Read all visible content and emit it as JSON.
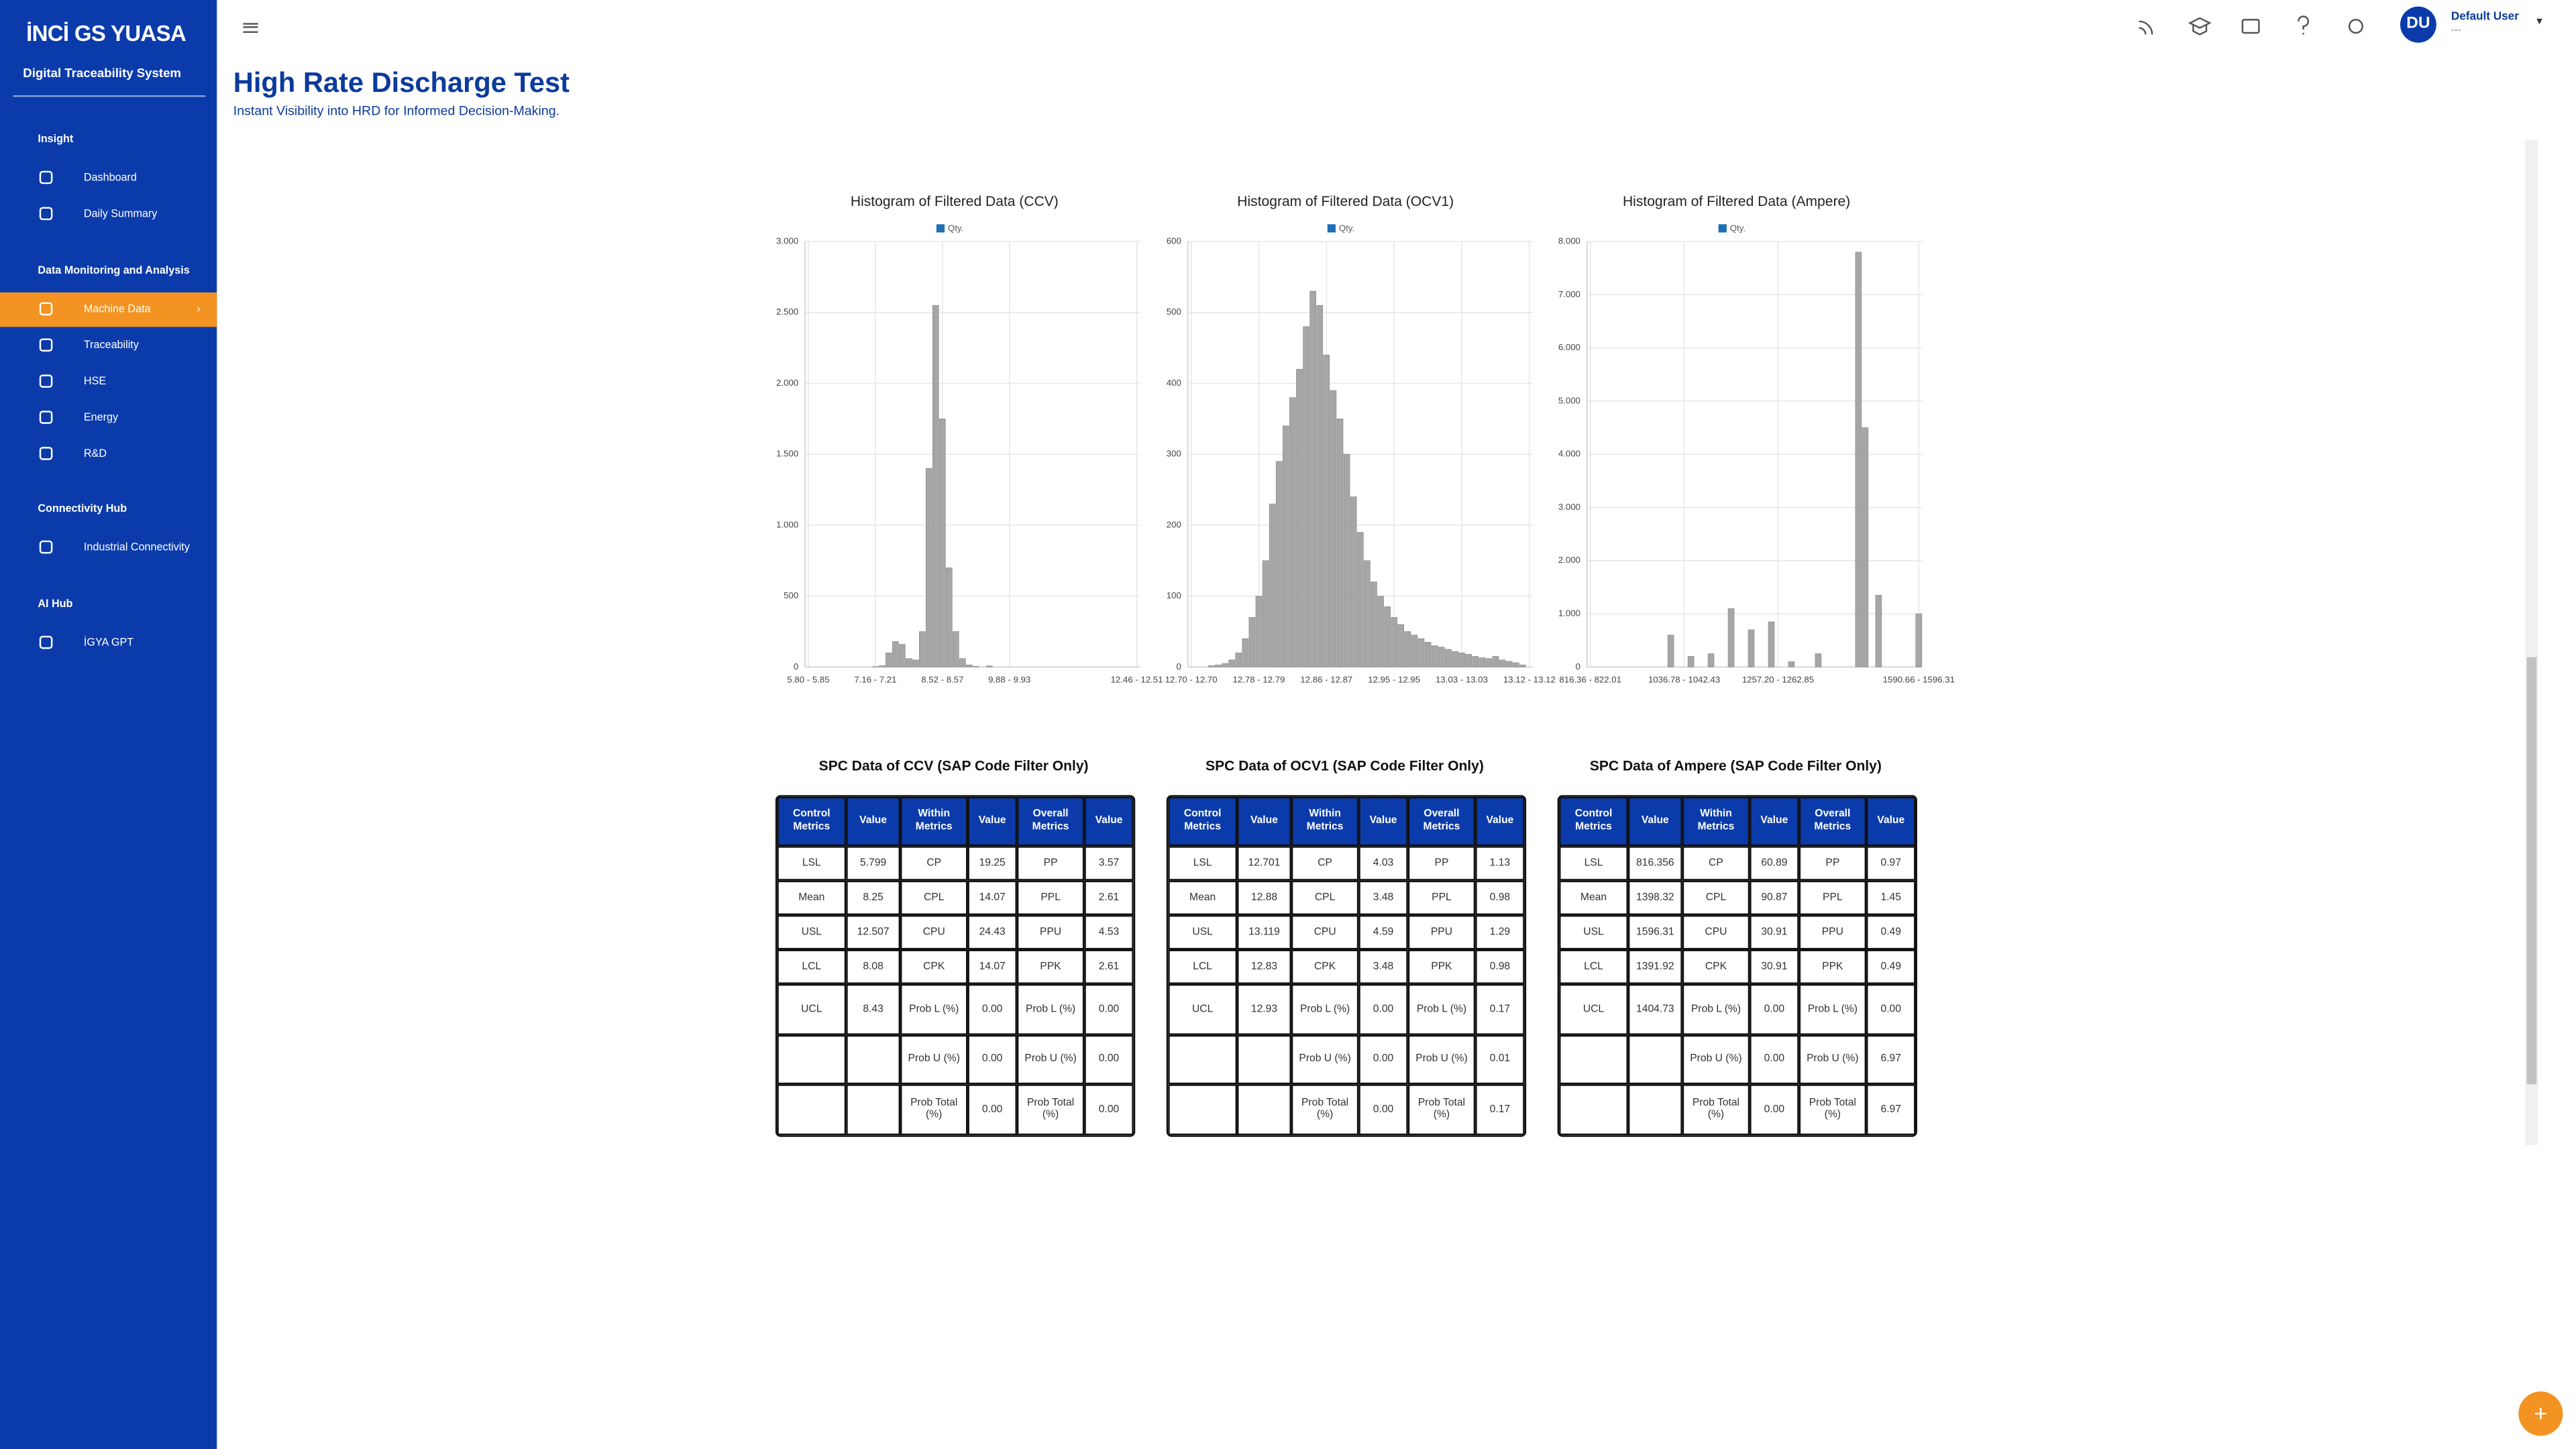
{
  "sidebar": {
    "logo": "İNCİ GS YUASA",
    "app_name": "Digital Traceability System",
    "sections": [
      {
        "title": "Insight",
        "items": [
          "Dashboard",
          "Daily Summary"
        ]
      },
      {
        "title": "Data Monitoring and Analysis",
        "items": [
          "Machine Data",
          "Traceability",
          "HSE",
          "Energy",
          "R&D"
        ]
      },
      {
        "title": "Connectivity Hub",
        "items": [
          "Industrial Connectivity"
        ]
      },
      {
        "title": "AI Hub",
        "items": [
          "İGYA GPT"
        ]
      }
    ],
    "active_section": 1,
    "active_item": 0
  },
  "header": {
    "title": "High Rate Discharge Test",
    "subtitle": "Instant Visibility into HRD for Informed Decision-Making.",
    "user_initials": "DU",
    "user_name": "Default User",
    "user_role": "---"
  },
  "chart_data": [
    {
      "type": "bar",
      "title": "Histogram of Filtered Data (CCV)",
      "grid": true,
      "categories": [
        "5.80 - 5.85",
        null,
        null,
        null,
        null,
        null,
        null,
        null,
        null,
        null,
        "7.16 - 7.21",
        null,
        null,
        null,
        null,
        null,
        null,
        null,
        null,
        null,
        "8.52 - 8.57",
        null,
        null,
        null,
        null,
        null,
        null,
        null,
        null,
        null,
        "9.88 - 9.93",
        null,
        null,
        null,
        null,
        null,
        null,
        null,
        null,
        null,
        null,
        null,
        null,
        null,
        null,
        null,
        null,
        null,
        null,
        "12.46 - 12.51"
      ],
      "series": [
        {
          "name": "Qty.",
          "color": "#a6a6a6",
          "legend_color": "#1f6fb5",
          "values": [
            0,
            0,
            0,
            0,
            0,
            0,
            0,
            0,
            0,
            0,
            3,
            10,
            100,
            180,
            160,
            60,
            50,
            250,
            1400,
            2550,
            1750,
            700,
            250,
            60,
            15,
            5,
            0,
            8,
            0,
            0,
            0,
            0,
            0,
            0,
            0,
            0,
            0,
            0,
            0,
            0,
            0,
            0,
            0,
            0,
            0,
            0,
            0,
            0,
            0,
            0
          ]
        }
      ],
      "ylim": [
        0,
        3000
      ],
      "yticks": [
        0,
        500,
        {
          "value": 1000,
          "label": "1.000"
        },
        {
          "value": 1500,
          "label": "1.500"
        },
        {
          "value": 2000,
          "label": "2.000"
        },
        {
          "value": 2500,
          "label": "2.500"
        },
        {
          "value": 3000,
          "label": "3.000"
        }
      ]
    },
    {
      "type": "bar",
      "title": "Histogram of Filtered Data (OCV1)",
      "grid": true,
      "categories": [
        "12.70 - 12.70",
        null,
        null,
        null,
        null,
        null,
        null,
        null,
        null,
        null,
        "12.78 - 12.79",
        null,
        null,
        null,
        null,
        null,
        null,
        null,
        null,
        null,
        "12.86 - 12.87",
        null,
        null,
        null,
        null,
        null,
        null,
        null,
        null,
        null,
        "12.95 - 12.95",
        null,
        null,
        null,
        null,
        null,
        null,
        null,
        null,
        null,
        "13.03 - 13.03",
        null,
        null,
        null,
        null,
        null,
        null,
        null,
        null,
        null,
        "13.12 - 13.12"
      ],
      "series": [
        {
          "name": "Qty.",
          "color": "#a6a6a6",
          "legend_color": "#1f6fb5",
          "values": [
            0,
            0,
            0,
            2,
            3,
            5,
            10,
            20,
            40,
            70,
            100,
            150,
            230,
            290,
            340,
            380,
            420,
            480,
            530,
            510,
            440,
            390,
            350,
            300,
            240,
            190,
            150,
            120,
            100,
            85,
            70,
            60,
            50,
            45,
            40,
            35,
            30,
            28,
            25,
            22,
            20,
            18,
            15,
            13,
            12,
            15,
            10,
            8,
            6,
            3,
            0
          ]
        }
      ],
      "ylim": [
        0,
        600
      ],
      "yticks": [
        0,
        100,
        200,
        300,
        400,
        500,
        600
      ]
    },
    {
      "type": "bar",
      "title": "Histogram of Filtered Data (Ampere)",
      "grid": true,
      "categories": [
        "816.36 - 822.01",
        null,
        null,
        null,
        null,
        null,
        null,
        null,
        null,
        null,
        null,
        null,
        null,
        null,
        "1036.78 - 1042.43",
        null,
        null,
        null,
        null,
        null,
        null,
        null,
        null,
        null,
        null,
        null,
        null,
        null,
        "1257.20 - 1262.85",
        null,
        null,
        null,
        null,
        null,
        null,
        null,
        null,
        null,
        null,
        null,
        null,
        null,
        null,
        null,
        null,
        null,
        null,
        null,
        null,
        "1590.66 - 1596.31"
      ],
      "series": [
        {
          "name": "Qty.",
          "color": "#a6a6a6",
          "legend_color": "#1f6fb5",
          "values": [
            0,
            0,
            0,
            0,
            0,
            0,
            0,
            0,
            0,
            0,
            0,
            0,
            600,
            0,
            0,
            200,
            0,
            0,
            250,
            0,
            0,
            1100,
            0,
            0,
            700,
            0,
            0,
            850,
            0,
            0,
            100,
            0,
            0,
            0,
            250,
            0,
            0,
            0,
            0,
            0,
            7800,
            4500,
            0,
            1350,
            0,
            0,
            0,
            0,
            0,
            1000
          ]
        }
      ],
      "ylim": [
        0,
        8000
      ],
      "yticks": [
        0,
        {
          "value": 1000,
          "label": "1.000"
        },
        {
          "value": 2000,
          "label": "2.000"
        },
        {
          "value": 3000,
          "label": "3.000"
        },
        {
          "value": 4000,
          "label": "4.000"
        },
        {
          "value": 5000,
          "label": "5.000"
        },
        {
          "value": 6000,
          "label": "6.000"
        },
        {
          "value": 7000,
          "label": "7.000"
        },
        {
          "value": 8000,
          "label": "8.000"
        }
      ]
    }
  ],
  "tables": [
    {
      "title": "SPC Data of CCV (SAP Code Filter Only)",
      "columns": [
        "Control Metrics",
        "Value",
        "Within Metrics",
        "Value",
        "Overall Metrics",
        "Value"
      ],
      "rows": [
        [
          "LSL",
          "5.799",
          "CP",
          "19.25",
          "PP",
          "3.57"
        ],
        [
          "Mean",
          "8.25",
          "CPL",
          "14.07",
          "PPL",
          "2.61"
        ],
        [
          "USL",
          "12.507",
          "CPU",
          "24.43",
          "PPU",
          "4.53"
        ],
        [
          "LCL",
          "8.08",
          "CPK",
          "14.07",
          "PPK",
          "2.61"
        ],
        [
          "UCL",
          "8.43",
          "Prob L (%)",
          "0.00",
          "Prob L (%)",
          "0.00"
        ],
        [
          null,
          null,
          "Prob U (%)",
          "0.00",
          "Prob U (%)",
          "0.00"
        ],
        [
          null,
          null,
          "Prob Total (%)",
          "0.00",
          "Prob Total (%)",
          "0.00"
        ]
      ]
    },
    {
      "title": "SPC Data of OCV1 (SAP Code Filter Only)",
      "columns": [
        "Control Metrics",
        "Value",
        "Within Metrics",
        "Value",
        "Overall Metrics",
        "Value"
      ],
      "rows": [
        [
          "LSL",
          "12.701",
          "CP",
          "4.03",
          "PP",
          "1.13"
        ],
        [
          "Mean",
          "12.88",
          "CPL",
          "3.48",
          "PPL",
          "0.98"
        ],
        [
          "USL",
          "13.119",
          "CPU",
          "4.59",
          "PPU",
          "1.29"
        ],
        [
          "LCL",
          "12.83",
          "CPK",
          "3.48",
          "PPK",
          "0.98"
        ],
        [
          "UCL",
          "12.93",
          "Prob L (%)",
          "0.00",
          "Prob L (%)",
          "0.17"
        ],
        [
          null,
          null,
          "Prob U (%)",
          "0.00",
          "Prob U (%)",
          "0.01"
        ],
        [
          null,
          null,
          "Prob Total (%)",
          "0.00",
          "Prob Total (%)",
          "0.17"
        ]
      ]
    },
    {
      "title": "SPC Data of Ampere (SAP Code Filter Only)",
      "columns": [
        "Control Metrics",
        "Value",
        "Within Metrics",
        "Value",
        "Overall Metrics",
        "Value"
      ],
      "rows": [
        [
          "LSL",
          "816.356",
          "CP",
          "60.89",
          "PP",
          "0.97"
        ],
        [
          "Mean",
          "1398.32",
          "CPL",
          "90.87",
          "PPL",
          "1.45"
        ],
        [
          "USL",
          "1596.31",
          "CPU",
          "30.91",
          "PPU",
          "0.49"
        ],
        [
          "LCL",
          "1391.92",
          "CPK",
          "30.91",
          "PPK",
          "0.49"
        ],
        [
          "UCL",
          "1404.73",
          "Prob L (%)",
          "0.00",
          "Prob L (%)",
          "0.00"
        ],
        [
          null,
          null,
          "Prob U (%)",
          "0.00",
          "Prob U (%)",
          "6.97"
        ],
        [
          null,
          null,
          "Prob Total (%)",
          "0.00",
          "Prob Total (%)",
          "6.97"
        ]
      ]
    }
  ]
}
